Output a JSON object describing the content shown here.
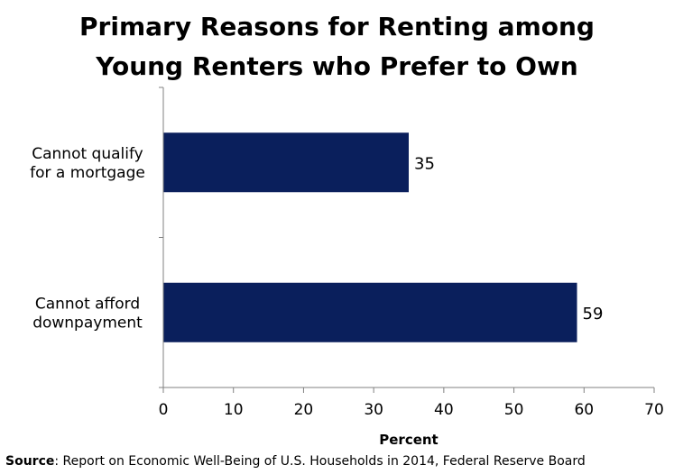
{
  "chart_data": {
    "type": "bar",
    "orientation": "horizontal",
    "title_lines": [
      "Primary Reasons for Renting among",
      "Young Renters who Prefer to Own"
    ],
    "categories": [
      [
        "Cannot qualify",
        "for a mortgage"
      ],
      [
        "Cannot afford",
        "downpayment"
      ]
    ],
    "values": [
      35,
      59
    ],
    "data_labels": [
      "35",
      "59"
    ],
    "xlabel": "Percent",
    "xlim": [
      0,
      70
    ],
    "xticks": [
      "0",
      "10",
      "20",
      "30",
      "40",
      "50",
      "60",
      "70"
    ],
    "bar_color": "#0a1f5c",
    "grid": false
  },
  "source": {
    "label": "Source",
    "text": ": Report on Economic Well-Being of U.S. Households  in 2014,  Federal Reserve Board"
  }
}
